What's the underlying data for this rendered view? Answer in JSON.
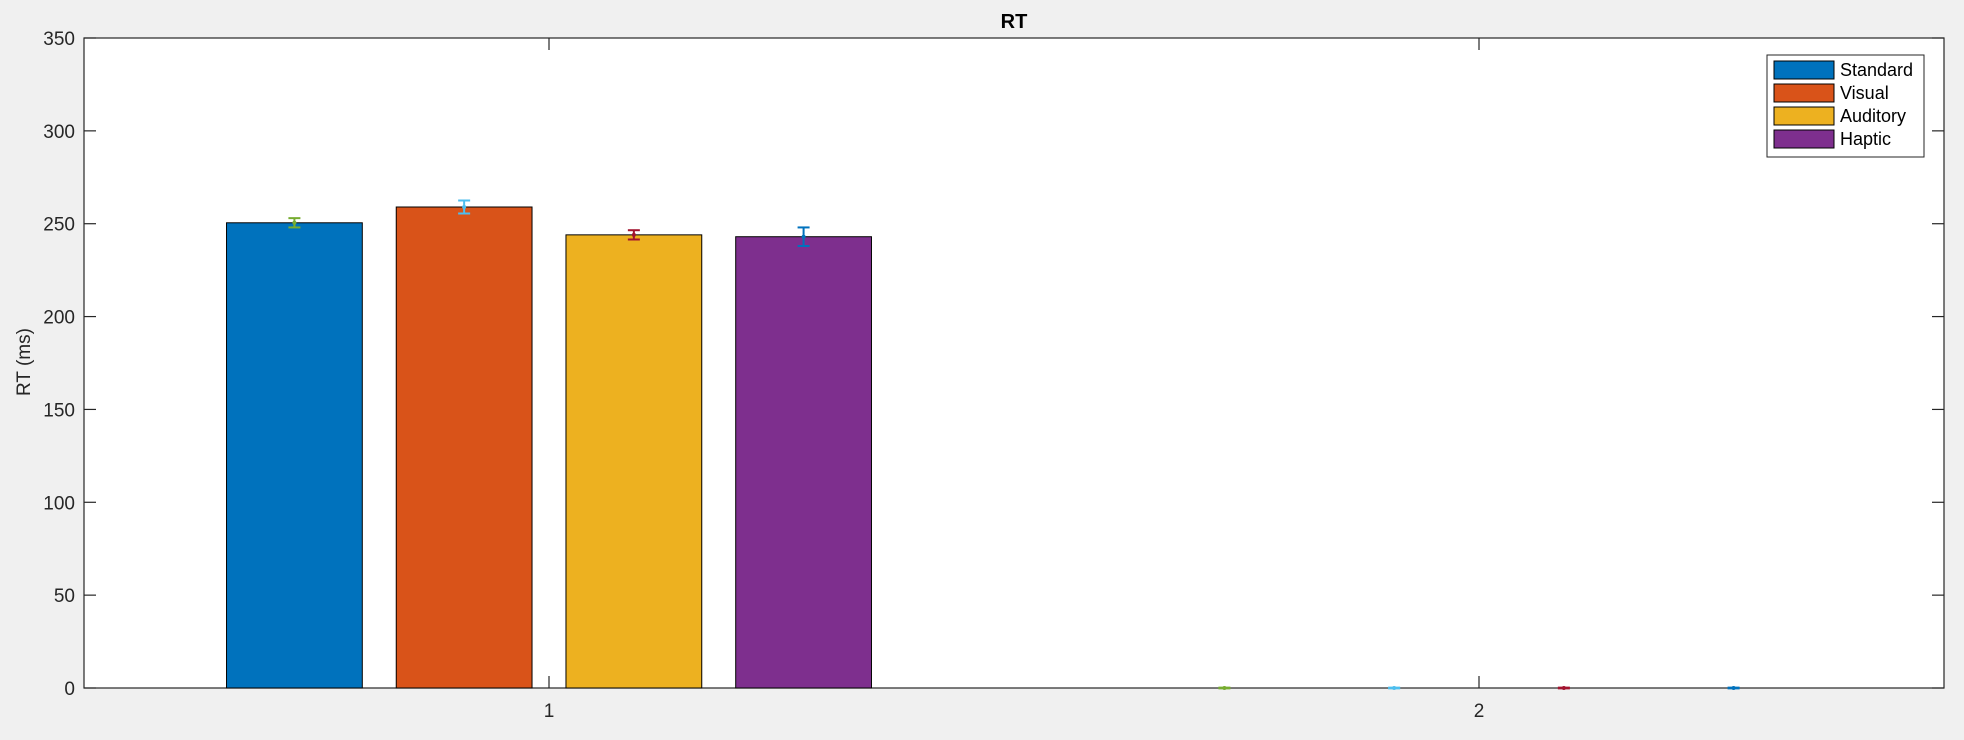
{
  "chart_data": {
    "type": "bar",
    "title": "RT",
    "xlabel": "",
    "ylabel": "RT (ms)",
    "categories": [
      "1",
      "2"
    ],
    "ylim": [
      0,
      350
    ],
    "yticks": [
      0,
      50,
      100,
      150,
      200,
      250,
      300,
      350
    ],
    "grid": false,
    "legend_position": "top-right",
    "series": [
      {
        "name": "Standard",
        "color": "#0072BD",
        "values": [
          250.5,
          0
        ],
        "errors": [
          2.5,
          0.2
        ],
        "error_color": "#77AC30"
      },
      {
        "name": "Visual",
        "color": "#D95319",
        "values": [
          259,
          0
        ],
        "errors": [
          3.5,
          0.2
        ],
        "error_color": "#4DBEEE"
      },
      {
        "name": "Auditory",
        "color": "#EDB120",
        "values": [
          244,
          0
        ],
        "errors": [
          2.5,
          0.2
        ],
        "error_color": "#A2142F"
      },
      {
        "name": "Haptic",
        "color": "#7E2F8E",
        "values": [
          243,
          0
        ],
        "errors": [
          5,
          0.2
        ],
        "error_color": "#0072BD"
      }
    ]
  }
}
